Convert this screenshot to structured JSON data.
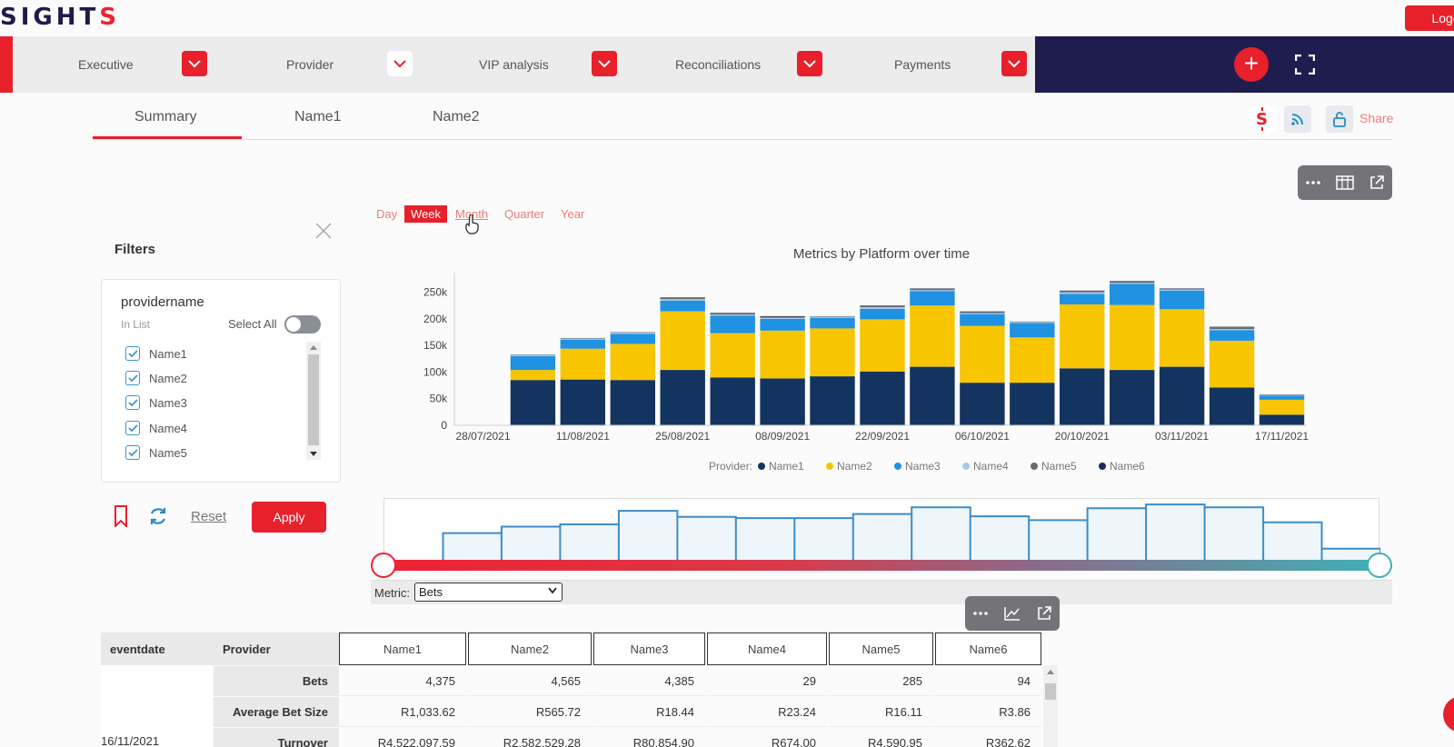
{
  "app": {
    "brand_prefix": "SIGHT",
    "brand_suffix": "S",
    "logout_label": "Logo"
  },
  "nav": {
    "items": [
      {
        "label": "Executive"
      },
      {
        "label": "Provider"
      },
      {
        "label": "VIP analysis"
      },
      {
        "label": "Reconciliations"
      },
      {
        "label": "Payments"
      }
    ],
    "add_icon": "plus-icon",
    "fullscreen_icon": "fullscreen-icon"
  },
  "tabs": [
    {
      "label": "Summary",
      "active": true
    },
    {
      "label": "Name1",
      "active": false
    },
    {
      "label": "Name2",
      "active": false
    }
  ],
  "share": {
    "label": "Share",
    "icons": [
      "brand-s-icon",
      "rss-icon",
      "unlock-icon"
    ]
  },
  "chart_toolbar": {
    "icons": [
      "more-icon",
      "table-icon",
      "external-link-icon"
    ]
  },
  "table_toolbar": {
    "icons": [
      "more-icon",
      "line-chart-icon",
      "external-link-icon"
    ]
  },
  "filters": {
    "title": "Filters",
    "field": "providername",
    "mode": "In List",
    "select_all_label": "Select All",
    "select_all_on": false,
    "options": [
      {
        "label": "Name1",
        "checked": true
      },
      {
        "label": "Name2",
        "checked": true
      },
      {
        "label": "Name3",
        "checked": true
      },
      {
        "label": "Name4",
        "checked": true
      },
      {
        "label": "Name5",
        "checked": true
      }
    ],
    "reset_label": "Reset",
    "apply_label": "Apply"
  },
  "periods": [
    {
      "label": "Day",
      "active": false
    },
    {
      "label": "Week",
      "active": true
    },
    {
      "label": "Month",
      "active": false,
      "hover": true
    },
    {
      "label": "Quarter",
      "active": false
    },
    {
      "label": "Year",
      "active": false
    }
  ],
  "chart_data": {
    "type": "bar",
    "stacked": true,
    "title": "Metrics by Platform over time",
    "xlabel": "",
    "ylabel": "",
    "ylim": [
      0,
      280000
    ],
    "yticks": [
      0,
      50000,
      100000,
      150000,
      200000,
      250000
    ],
    "ytick_labels": [
      "0",
      "50k",
      "100k",
      "150k",
      "200k",
      "250k"
    ],
    "xtick_labels": [
      "28/07/2021",
      "11/08/2021",
      "25/08/2021",
      "08/09/2021",
      "22/09/2021",
      "06/10/2021",
      "20/10/2021",
      "03/11/2021",
      "17/11/2021"
    ],
    "categories": [
      "28/07/2021",
      "04/08/2021",
      "11/08/2021",
      "18/08/2021",
      "25/08/2021",
      "01/09/2021",
      "08/09/2021",
      "15/09/2021",
      "22/09/2021",
      "29/09/2021",
      "06/10/2021",
      "13/10/2021",
      "20/10/2021",
      "27/10/2021",
      "03/11/2021",
      "10/11/2021",
      "17/11/2021"
    ],
    "legend_title": "Provider:",
    "legend_position": "bottom",
    "series": [
      {
        "name": "Name1",
        "color": "#13345e",
        "values": [
          0,
          85000,
          86000,
          85000,
          104000,
          90000,
          88000,
          92000,
          101000,
          110000,
          80000,
          80000,
          107000,
          104000,
          110000,
          71000,
          20000
        ]
      },
      {
        "name": "Name2",
        "color": "#f7c600",
        "values": [
          0,
          19000,
          58000,
          68000,
          110000,
          83000,
          90000,
          90000,
          98000,
          115000,
          107000,
          85000,
          120000,
          122000,
          108000,
          88000,
          28000
        ]
      },
      {
        "name": "Name3",
        "color": "#1f92e1",
        "values": [
          0,
          26000,
          17000,
          19000,
          20000,
          33000,
          22000,
          20000,
          20000,
          27000,
          22000,
          27000,
          20000,
          40000,
          35000,
          20000,
          8000
        ]
      },
      {
        "name": "Name4",
        "color": "#a8c8ea",
        "values": [
          0,
          2000,
          2000,
          2000,
          3000,
          2000,
          2000,
          2000,
          3000,
          2000,
          2000,
          2000,
          3000,
          2000,
          2000,
          2000,
          1000
        ]
      },
      {
        "name": "Name5",
        "color": "#6b6b6b",
        "values": [
          0,
          1000,
          1000,
          1000,
          2000,
          2000,
          2000,
          1000,
          2000,
          2000,
          2000,
          1000,
          2000,
          2000,
          1000,
          3000,
          1000
        ]
      },
      {
        "name": "Name6",
        "color": "#1a2d57",
        "values": [
          0,
          0,
          0,
          0,
          1000,
          1000,
          1000,
          0,
          1000,
          1000,
          1000,
          0,
          1000,
          1000,
          1000,
          1000,
          0
        ]
      }
    ],
    "grid": false
  },
  "brush": {
    "metric_label": "Metric:",
    "metric_value": "Bets",
    "handles": [
      "left",
      "right"
    ]
  },
  "table": {
    "col_eventdate": "eventdate",
    "col_provider": "Provider",
    "columns": [
      "Name1",
      "Name2",
      "Name3",
      "Name4",
      "Name5",
      "Name6"
    ],
    "date": "16/11/2021",
    "rows": [
      {
        "label": "Bets",
        "values": [
          "4,375",
          "4,565",
          "4,385",
          "29",
          "285",
          "94"
        ]
      },
      {
        "label": "Average Bet Size",
        "values": [
          "R1,033.62",
          "R565.72",
          "R18.44",
          "R23.24",
          "R16.11",
          "R3.86"
        ]
      },
      {
        "label": "Turnover",
        "values": [
          "R4,522,097.59",
          "R2,582,529.28",
          "R80,854.90",
          "R674.00",
          "R4,590.95",
          "R362.62"
        ]
      }
    ]
  },
  "colors": {
    "accent": "#e8202b",
    "navy": "#1f1c4f",
    "teal": "#3fb0b3"
  }
}
